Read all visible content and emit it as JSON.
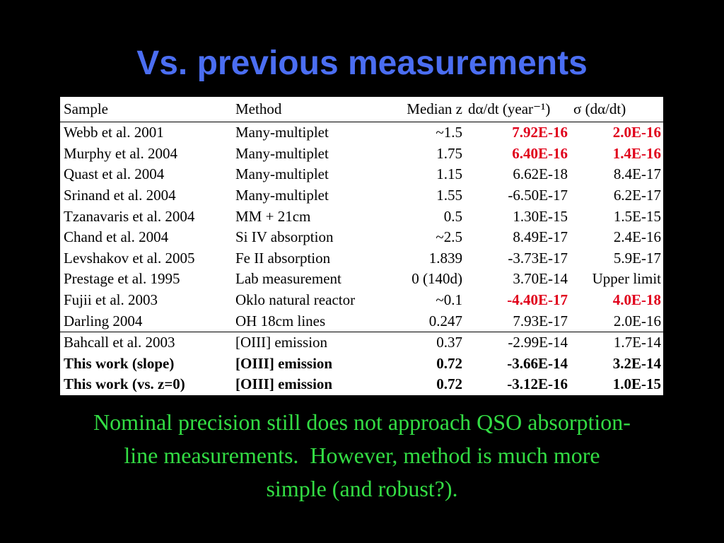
{
  "header": {
    "title": "Vs. previous measurements"
  },
  "table": {
    "columns": [
      "Sample",
      "Method",
      "Median z",
      "dα/dt (year⁻¹)",
      "σ (dα/dt)"
    ],
    "rows": [
      [
        "Webb et al. 2001",
        "Many-multiplet",
        "~1.5",
        "7.92E-16",
        "2.0E-16"
      ],
      [
        "Murphy et al. 2004",
        "Many-multiplet",
        "1.75",
        "6.40E-16",
        "1.4E-16"
      ],
      [
        "Quast et al. 2004",
        "Many-multiplet",
        "1.15",
        "6.62E-18",
        "8.4E-17"
      ],
      [
        "Srinand et al. 2004",
        "Many-multiplet",
        "1.55",
        "-6.50E-17",
        "6.2E-17"
      ],
      [
        "Tzanavaris et al. 2004",
        "MM + 21cm",
        "0.5",
        "1.30E-15",
        "1.5E-15"
      ],
      [
        "Chand et al. 2004",
        "Si IV absorption",
        "~2.5",
        "8.49E-17",
        "2.4E-16"
      ],
      [
        "Levshakov et al. 2005",
        "Fe II absorption",
        "1.839",
        "-3.73E-17",
        "5.9E-17"
      ],
      [
        "Prestage et al. 1995",
        "Lab measurement",
        "0 (140d)",
        "3.70E-14",
        "Upper limit"
      ],
      [
        "Fujii et al. 2003",
        "Oklo natural reactor",
        "~0.1",
        "-4.40E-17",
        "4.0E-18"
      ],
      [
        "Darling 2004",
        "OH 18cm lines",
        "0.247",
        "7.93E-17",
        "2.0E-16"
      ],
      [
        "Bahcall et al. 2003",
        "[OIII] emission",
        "0.37",
        "-2.99E-14",
        "1.7E-14"
      ],
      [
        "This work (slope)",
        "[OIII] emission",
        "0.72",
        "-3.66E-14",
        "3.2E-14"
      ],
      [
        "This work (vs. z=0)",
        "[OIII] emission",
        "0.72",
        "-3.12E-16",
        "1.0E-15"
      ]
    ]
  },
  "footer": {
    "lines": [
      "Nominal precision still does not approach QSO absorption-",
      "line measurements.  However, method is much more",
      "simple (and robust?)."
    ]
  }
}
